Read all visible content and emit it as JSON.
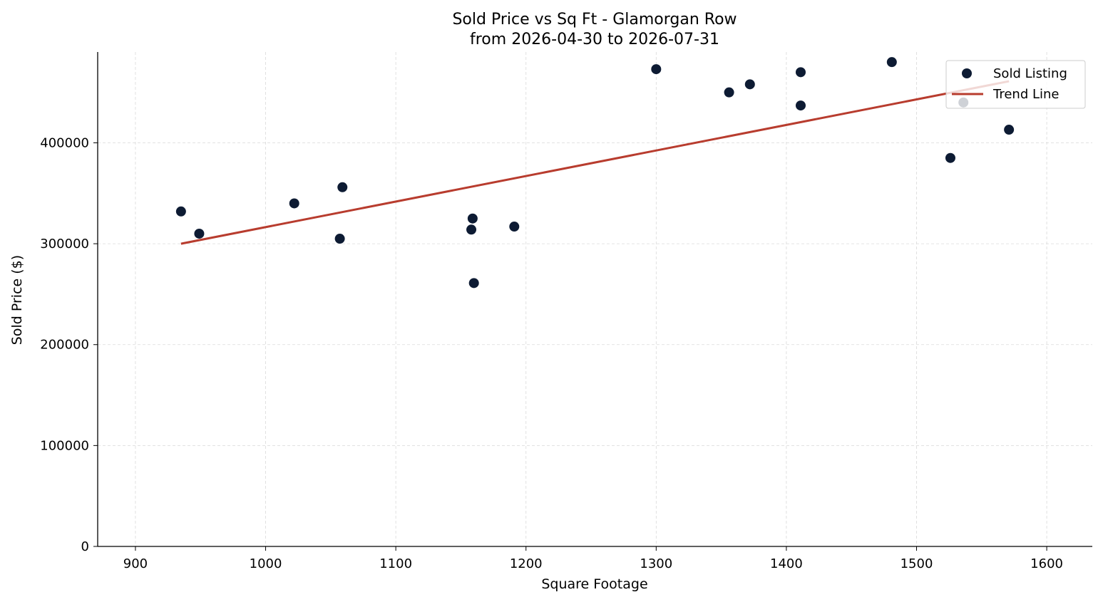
{
  "chart_data": {
    "type": "scatter",
    "title": "Sold Price vs Sq Ft - Glamorgan Row",
    "subtitle": "from 2026-04-30 to 2026-07-31",
    "xlabel": "Square Footage",
    "ylabel": "Sold Price ($)",
    "xlim": [
      871,
      1635
    ],
    "ylim": [
      0,
      490000
    ],
    "xticks": [
      900,
      1000,
      1100,
      1200,
      1300,
      1400,
      1500,
      1600
    ],
    "yticks": [
      0,
      100000,
      200000,
      300000,
      400000
    ],
    "grid": true,
    "legend_position": "top-right",
    "colors": {
      "points": "#0d1b33",
      "trend": "#b83c2e"
    },
    "series": [
      {
        "name": "Sold Listing",
        "kind": "scatter",
        "points": [
          {
            "x": 935,
            "y": 332000
          },
          {
            "x": 949,
            "y": 310000
          },
          {
            "x": 1022,
            "y": 340000
          },
          {
            "x": 1057,
            "y": 305000
          },
          {
            "x": 1059,
            "y": 356000
          },
          {
            "x": 1158,
            "y": 314000
          },
          {
            "x": 1159,
            "y": 325000
          },
          {
            "x": 1160,
            "y": 261000
          },
          {
            "x": 1191,
            "y": 317000
          },
          {
            "x": 1300,
            "y": 473000
          },
          {
            "x": 1356,
            "y": 450000
          },
          {
            "x": 1372,
            "y": 458000
          },
          {
            "x": 1411,
            "y": 470000
          },
          {
            "x": 1411,
            "y": 437000
          },
          {
            "x": 1481,
            "y": 480000
          },
          {
            "x": 1526,
            "y": 385000
          },
          {
            "x": 1536,
            "y": 440000
          },
          {
            "x": 1571,
            "y": 413000
          }
        ]
      },
      {
        "name": "Trend Line",
        "kind": "line",
        "points": [
          {
            "x": 935,
            "y": 300000
          },
          {
            "x": 1571,
            "y": 461000
          }
        ]
      }
    ]
  }
}
